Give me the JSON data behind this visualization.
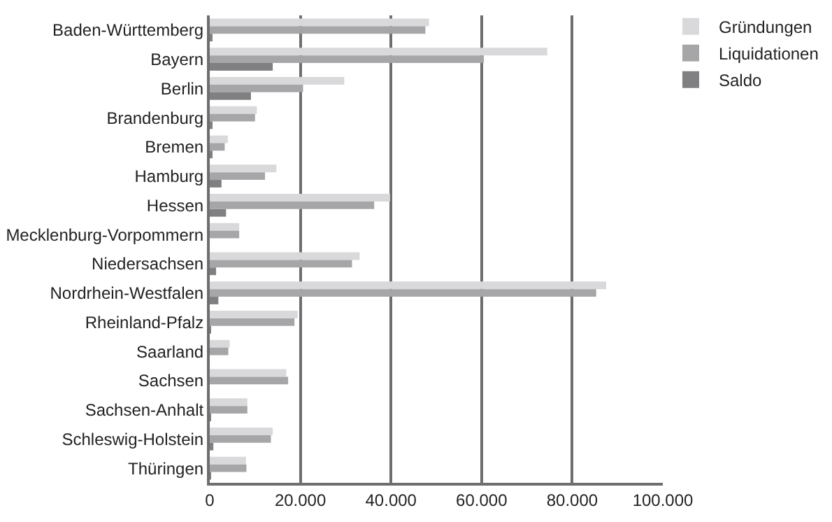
{
  "chart_data": {
    "type": "bar",
    "orientation": "horizontal",
    "categories": [
      "Baden-Württemberg",
      "Bayern",
      "Berlin",
      "Brandenburg",
      "Bremen",
      "Hamburg",
      "Hessen",
      "Mecklenburg-Vorpommern",
      "Niedersachsen",
      "Nordrhein-Westfalen",
      "Rheinland-Pfalz",
      "Saarland",
      "Sachsen",
      "Sachsen-Anhalt",
      "Schleswig-Holstein",
      "Thüringen"
    ],
    "series": [
      {
        "name": "Gründungen",
        "color": "#d9d9db",
        "values": [
          48400,
          74500,
          29700,
          10400,
          4000,
          14700,
          39800,
          6500,
          33100,
          87500,
          19400,
          4400,
          16900,
          8300,
          13900,
          8000
        ]
      },
      {
        "name": "Liquidationen",
        "color": "#a6a6a8",
        "values": [
          47600,
          60500,
          20600,
          10000,
          3300,
          12200,
          36300,
          6500,
          31400,
          85300,
          18700,
          4100,
          17300,
          8300,
          13500,
          8100
        ]
      },
      {
        "name": "Saldo",
        "color": "#808082",
        "values": [
          600,
          13900,
          9100,
          500,
          500,
          2600,
          3600,
          0,
          1400,
          1900,
          100,
          0,
          0,
          200,
          800,
          200
        ]
      }
    ],
    "xlim": [
      0,
      100000
    ],
    "xticks": [
      0,
      {
        "value": 20000,
        "label": "20.000"
      },
      {
        "value": 40000,
        "label": "40.000"
      },
      {
        "value": 60000,
        "label": "60.000"
      },
      {
        "value": 80000,
        "label": "80.000"
      },
      {
        "value": 100000,
        "label": "100.000"
      }
    ],
    "grid": "x",
    "legend": "top right"
  }
}
